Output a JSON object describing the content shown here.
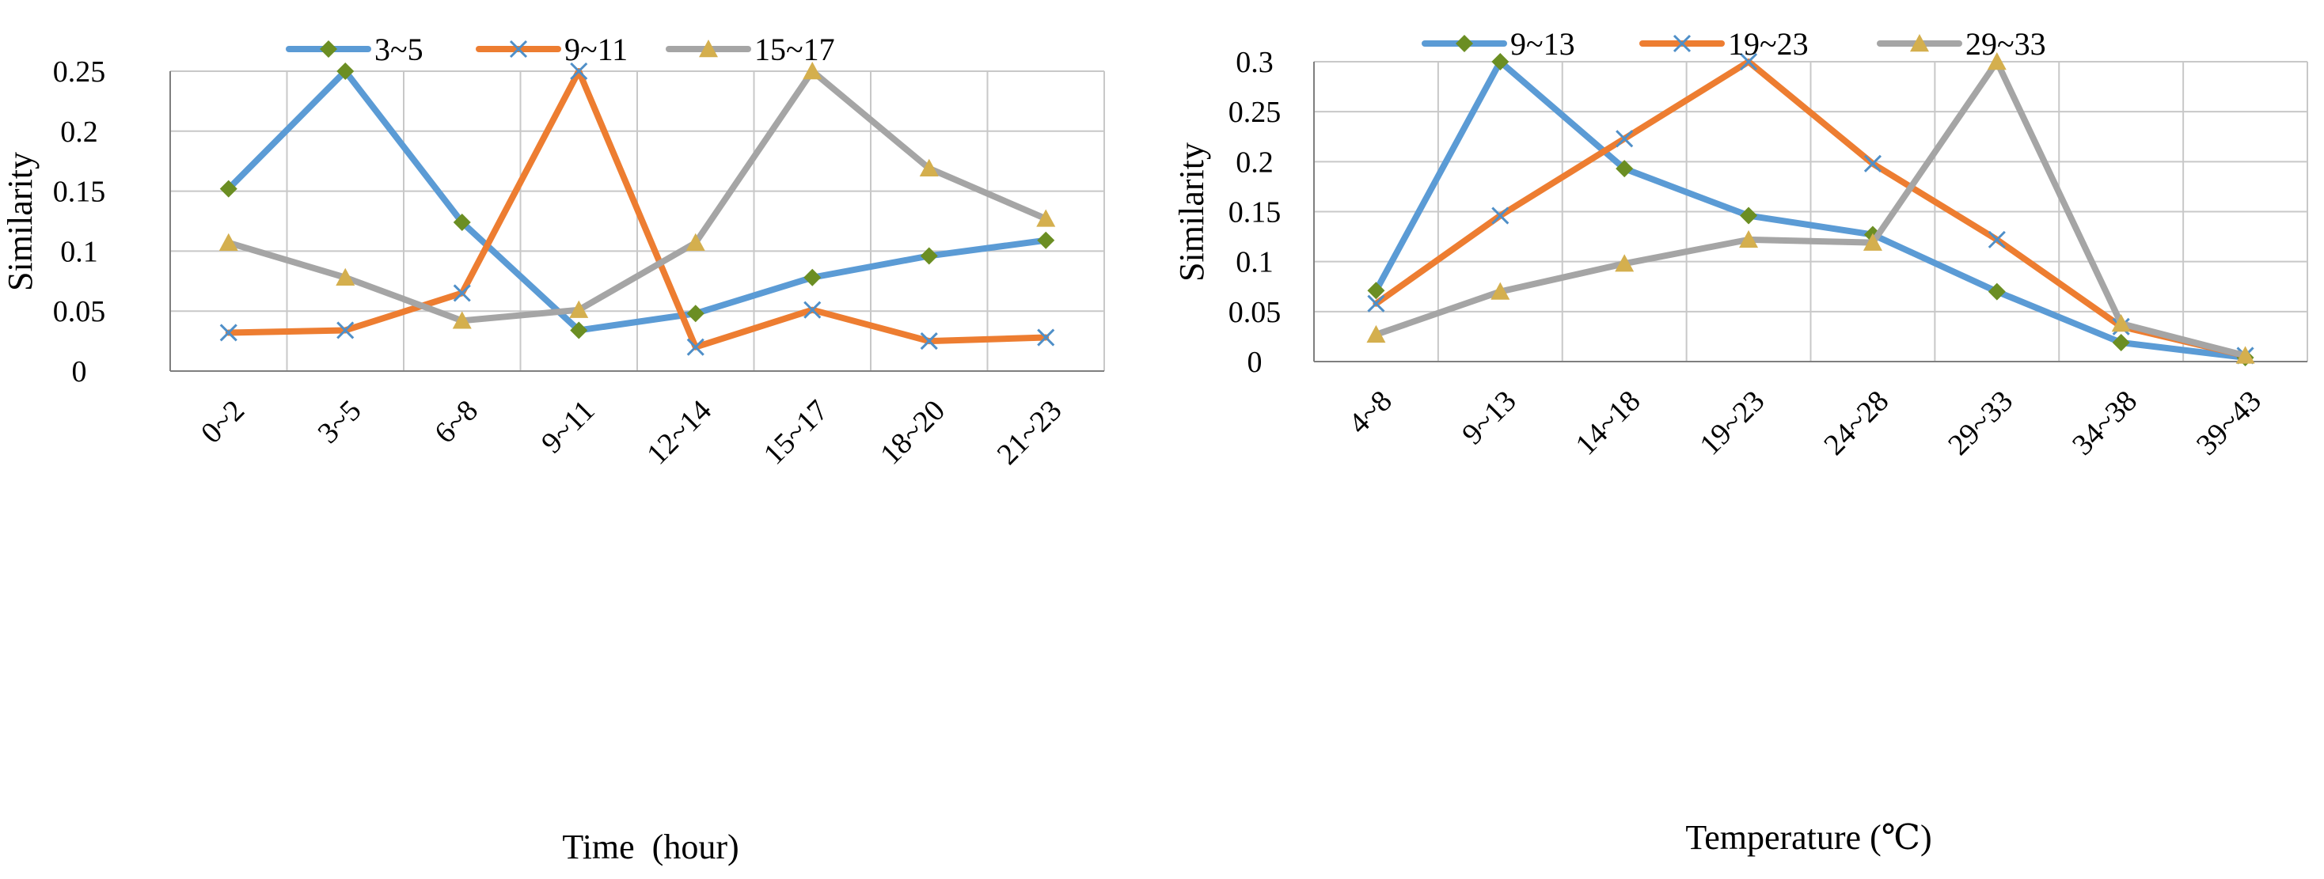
{
  "colors": {
    "series_blue": "#5B9BD5",
    "series_orange": "#ED7D31",
    "series_gray": "#A5A5A5",
    "marker_diamond": "#6B8E23",
    "marker_x": "#4F8FC8",
    "marker_triangle": "#D4AF4E",
    "grid": "#C8C8C8",
    "axis": "#7F7F7F"
  },
  "chart_data": [
    {
      "type": "line",
      "title": "",
      "xlabel": "Time  (hour)",
      "ylabel": "Similarity",
      "ylim": [
        0,
        0.25
      ],
      "yticks": [
        "0",
        "0.05",
        "0.1",
        "0.15",
        "0.2",
        "0.25"
      ],
      "categories": [
        "0~2",
        "3~5",
        "6~8",
        "9~11",
        "12~14",
        "15~17",
        "18~20",
        "21~23"
      ],
      "legend_position": "top",
      "series": [
        {
          "name": "3~5",
          "marker": "diamond",
          "color_key": "series_blue",
          "values": [
            0.152,
            0.25,
            0.124,
            0.034,
            0.048,
            0.078,
            0.096,
            0.109
          ]
        },
        {
          "name": "9~11",
          "marker": "x",
          "color_key": "series_orange",
          "values": [
            0.032,
            0.034,
            0.065,
            0.25,
            0.02,
            0.051,
            0.025,
            0.028
          ]
        },
        {
          "name": "15~17",
          "marker": "triangle",
          "color_key": "series_gray",
          "values": [
            0.107,
            0.078,
            0.042,
            0.051,
            0.107,
            0.25,
            0.169,
            0.127
          ]
        }
      ]
    },
    {
      "type": "line",
      "title": "",
      "xlabel": "Temperature (℃)",
      "ylabel": "Similarity",
      "ylim": [
        0,
        0.3
      ],
      "yticks": [
        "0",
        "0.05",
        "0.1",
        "0.15",
        "0.2",
        "0.25",
        "0.3"
      ],
      "categories": [
        "4~8",
        "9~13",
        "14~18",
        "19~23",
        "24~28",
        "29~33",
        "34~38",
        "39~43"
      ],
      "legend_position": "top",
      "series": [
        {
          "name": "9~13",
          "marker": "diamond",
          "color_key": "series_blue",
          "values": [
            0.071,
            0.3,
            0.193,
            0.146,
            0.127,
            0.07,
            0.019,
            0.004
          ]
        },
        {
          "name": "19~23",
          "marker": "x",
          "color_key": "series_orange",
          "values": [
            0.058,
            0.146,
            0.223,
            0.3,
            0.198,
            0.122,
            0.035,
            0.006
          ]
        },
        {
          "name": "29~33",
          "marker": "triangle",
          "color_key": "series_gray",
          "values": [
            0.027,
            0.07,
            0.098,
            0.122,
            0.119,
            0.3,
            0.038,
            0.006
          ]
        }
      ]
    }
  ]
}
